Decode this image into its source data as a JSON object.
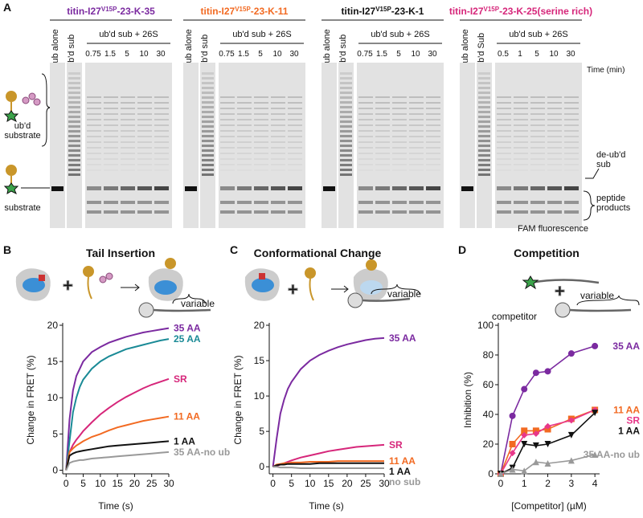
{
  "panel_labels": [
    "A",
    "B",
    "C",
    "D"
  ],
  "gels": [
    {
      "title": {
        "prefix": "titin-I27",
        "sup": "V15P",
        "suffix": "-23-K-35"
      },
      "color": "#7b2aa0",
      "lanes": [
        "sub alone",
        "ub'd sub"
      ],
      "group": "ub'd sub + 26S",
      "times": [
        "0.75",
        "1.5",
        "5",
        "10",
        "30"
      ]
    },
    {
      "title": {
        "prefix": "titin-I27",
        "sup": "V15P",
        "suffix": "-23-K-11"
      },
      "color": "#f26a22",
      "lanes": [
        "sub alone",
        "ub'd sub"
      ],
      "group": "ub'd sub + 26S",
      "times": [
        "0.75",
        "1.5",
        "5",
        "10",
        "30"
      ]
    },
    {
      "title": {
        "prefix": "titin-I27",
        "sup": "V15P",
        "suffix": "-23-K-1"
      },
      "color": "#111111",
      "lanes": [
        "sub alone",
        "ub'd sub"
      ],
      "group": "ub'd sub + 26S",
      "times": [
        "0.75",
        "1.5",
        "5",
        "10",
        "30"
      ]
    },
    {
      "title": {
        "prefix": "titin-I27",
        "sup": "V15P",
        "suffix": "-23-K-25(serine rich)"
      },
      "color": "#d6267a",
      "lanes": [
        "sub alone",
        "ub'd Sub"
      ],
      "group": "ub'd sub + 26S",
      "times": [
        "0.5",
        "1",
        "5",
        "10",
        "30"
      ],
      "time_unit": "Time (min)"
    }
  ],
  "gel_annotations": {
    "left": [
      [
        "ub'd",
        "substrate"
      ],
      [
        "substrate"
      ]
    ],
    "right": [
      [
        "de-ub'd",
        "sub"
      ],
      [
        "peptide",
        "products"
      ]
    ],
    "bottom": "FAM fluorescence"
  },
  "chart_data": [
    {
      "type": "line",
      "title": "Tail Insertion",
      "annotations": [
        "variable"
      ],
      "x_label": "Time (s)",
      "y_label": "Change in FRET (%)",
      "x": [
        0,
        1,
        2,
        3,
        4,
        5,
        7.5,
        10,
        12.5,
        15,
        17.5,
        20,
        22.5,
        25,
        27.5,
        30
      ],
      "xlim": [
        -1,
        30
      ],
      "xticks": [
        0,
        5,
        10,
        15,
        20,
        25,
        30
      ],
      "ylim": [
        -0.5,
        20
      ],
      "yticks": [
        0,
        5,
        10,
        15,
        20
      ],
      "series": [
        {
          "name": "35 AA",
          "color": "#7b2aa0",
          "values": [
            0,
            7,
            11,
            13,
            14,
            15,
            16.3,
            17,
            17.6,
            18,
            18.4,
            18.7,
            19,
            19.2,
            19.4,
            19.6
          ]
        },
        {
          "name": "25 AA",
          "color": "#1a8a96",
          "values": [
            0,
            4,
            8,
            10,
            11.5,
            12.5,
            14,
            15,
            15.7,
            16.2,
            16.7,
            17,
            17.3,
            17.6,
            17.9,
            18.1
          ]
        },
        {
          "name": "SR",
          "color": "#d6267a",
          "values": [
            0,
            2.5,
            3.5,
            4.2,
            4.8,
            5.4,
            6.6,
            7.7,
            8.6,
            9.4,
            10.1,
            10.7,
            11.3,
            11.8,
            12.2,
            12.6
          ]
        },
        {
          "name": "11 AA",
          "color": "#f26a22",
          "values": [
            0,
            2.5,
            3,
            3.4,
            3.7,
            4,
            4.6,
            5,
            5.5,
            5.9,
            6.2,
            6.5,
            6.8,
            7,
            7.2,
            7.4
          ]
        },
        {
          "name": "1 AA",
          "color": "#111111",
          "values": [
            0,
            2,
            2.3,
            2.5,
            2.6,
            2.7,
            2.9,
            3.1,
            3.3,
            3.4,
            3.5,
            3.6,
            3.7,
            3.8,
            3.9,
            4
          ]
        },
        {
          "name": "35 AA-no ub",
          "color": "#999999",
          "values": [
            0,
            1,
            1.2,
            1.3,
            1.4,
            1.4,
            1.6,
            1.7,
            1.8,
            1.9,
            2,
            2.1,
            2.2,
            2.3,
            2.4,
            2.5
          ]
        }
      ]
    },
    {
      "type": "line",
      "title": "Conformational Change",
      "annotations": [
        "variable"
      ],
      "x_label": "Time (s)",
      "y_label": "Change in FRET (%)",
      "x": [
        0,
        1,
        2,
        3,
        4,
        5,
        7.5,
        10,
        12.5,
        15,
        17.5,
        20,
        22.5,
        25,
        27.5,
        30
      ],
      "xlim": [
        -1,
        30
      ],
      "xticks": [
        0,
        5,
        10,
        15,
        20,
        25,
        30
      ],
      "ylim": [
        -1,
        20
      ],
      "yticks": [
        0,
        5,
        10,
        15,
        20
      ],
      "series": [
        {
          "name": "35 AA",
          "color": "#7b2aa0",
          "values": [
            0,
            4,
            7.5,
            9.5,
            11,
            12,
            13.8,
            15,
            15.8,
            16.4,
            16.9,
            17.3,
            17.6,
            17.9,
            18.1,
            18.2
          ]
        },
        {
          "name": "SR",
          "color": "#d6267a",
          "values": [
            0,
            0.1,
            0.3,
            0.5,
            0.7,
            0.9,
            1.3,
            1.6,
            1.9,
            2.2,
            2.4,
            2.6,
            2.8,
            2.9,
            3,
            3.1
          ]
        },
        {
          "name": "11 AA",
          "color": "#f26a22",
          "values": [
            0,
            0.3,
            0.4,
            0.5,
            0.5,
            0.6,
            0.6,
            0.7,
            0.7,
            0.7,
            0.8,
            0.8,
            0.8,
            0.8,
            0.8,
            0.8
          ]
        },
        {
          "name": "1 AA",
          "color": "#111111",
          "values": [
            0,
            0.2,
            0.3,
            0.3,
            0.4,
            0.4,
            0.4,
            0.4,
            0.5,
            0.5,
            0.5,
            0.5,
            0.5,
            0.5,
            0.5,
            0.5
          ]
        },
        {
          "name": "no sub",
          "color": "#999999",
          "values": [
            0,
            0,
            -0.1,
            -0.1,
            -0.1,
            -0.1,
            -0.2,
            -0.2,
            -0.2,
            -0.2,
            -0.2,
            -0.2,
            -0.2,
            -0.2,
            -0.2,
            -0.2
          ]
        }
      ]
    },
    {
      "type": "line",
      "title": "Competition",
      "annotations": [
        "competitor",
        "variable"
      ],
      "x_label": "[Competitor] (µM)",
      "y_label": "Inhibition (%)",
      "x": [
        0,
        0.5,
        1,
        1.5,
        2,
        3,
        4
      ],
      "xlim": [
        -0.1,
        4.2
      ],
      "xticks": [
        0,
        1,
        2,
        3,
        4
      ],
      "ylim": [
        0,
        100
      ],
      "yticks": [
        0,
        20,
        40,
        60,
        80,
        100
      ],
      "series": [
        {
          "name": "35 AA",
          "color": "#7b2aa0",
          "marker": "circle",
          "values": [
            0,
            39,
            57,
            68,
            69,
            81,
            86
          ]
        },
        {
          "name": "11 AA",
          "color": "#f26a22",
          "marker": "square",
          "values": [
            0,
            20,
            29,
            29,
            30,
            37,
            43
          ]
        },
        {
          "name": "SR",
          "color": "#e8388a",
          "marker": "diamond",
          "values": [
            0,
            14,
            26,
            27,
            32,
            36,
            43
          ]
        },
        {
          "name": "1 AA",
          "color": "#111111",
          "marker": "triangle-down",
          "values": [
            0,
            4,
            20,
            19,
            20,
            26,
            41
          ]
        },
        {
          "name": "35 AA-no ub",
          "color": "#999999",
          "marker": "triangle",
          "values": [
            0,
            3,
            2,
            8,
            7,
            9,
            13
          ]
        }
      ]
    }
  ]
}
